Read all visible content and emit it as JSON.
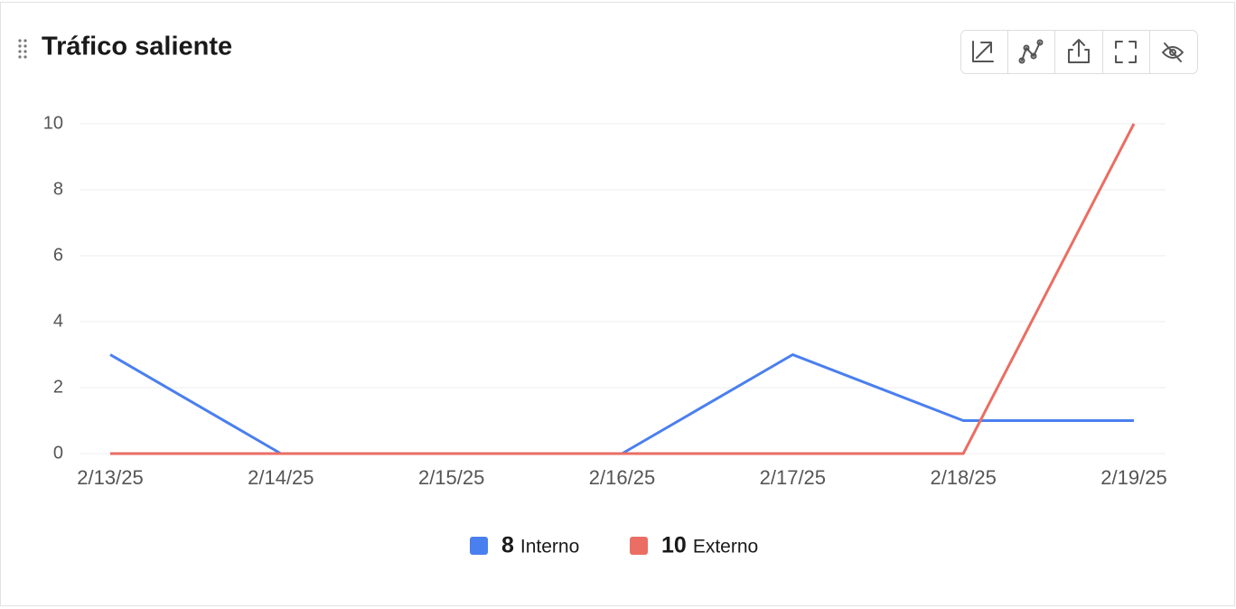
{
  "chart_data": {
    "type": "line",
    "title": "Tráfico saliente",
    "categories": [
      "2/13/25",
      "2/14/25",
      "2/15/25",
      "2/16/25",
      "2/17/25",
      "2/18/25",
      "2/19/25"
    ],
    "series": [
      {
        "name": "Interno",
        "color": "#4a7fef",
        "total": 8,
        "values": [
          3,
          0,
          0,
          0,
          3,
          1,
          1
        ]
      },
      {
        "name": "Externo",
        "color": "#ea6e63",
        "total": 10,
        "values": [
          0,
          0,
          0,
          0,
          0,
          0,
          10
        ]
      }
    ],
    "ylim": [
      0,
      10
    ],
    "yticks": [
      0,
      2,
      4,
      6,
      8,
      10
    ],
    "grid": true
  }
}
